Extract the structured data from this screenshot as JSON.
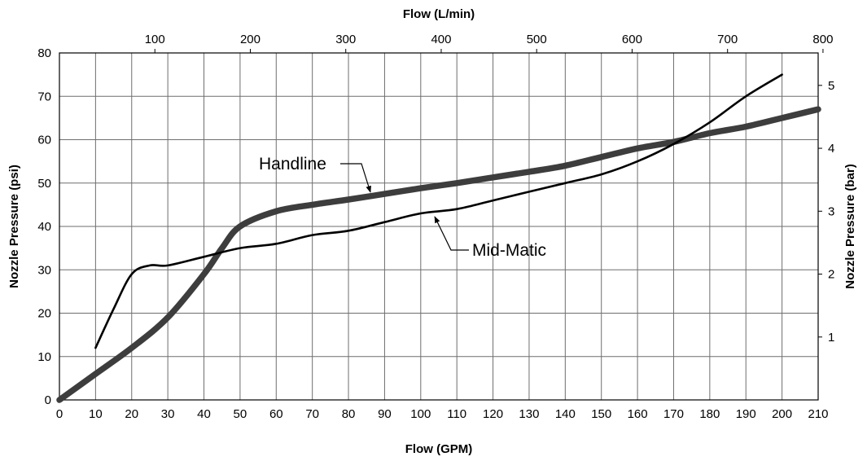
{
  "chart_data": {
    "type": "line",
    "x_label_bottom": "Flow (GPM)",
    "x_label_top": "Flow (L/min)",
    "y_label_left": "Nozzle Pressure (psi)",
    "y_label_right": "Nozzle Pressure (bar)",
    "xlim": [
      0,
      210
    ],
    "ylim": [
      0,
      80
    ],
    "x_ticks": [
      "0",
      "10",
      "20",
      "30",
      "40",
      "50",
      "60",
      "70",
      "80",
      "90",
      "100",
      "110",
      "120",
      "130",
      "140",
      "150",
      "160",
      "170",
      "180",
      "190",
      "200",
      "210"
    ],
    "y_ticks": [
      "0",
      "10",
      "20",
      "30",
      "40",
      "50",
      "60",
      "70",
      "80"
    ],
    "top_ticks": [
      {
        "value": 100,
        "label": "100"
      },
      {
        "value": 200,
        "label": "200"
      },
      {
        "value": 300,
        "label": "300"
      },
      {
        "value": 400,
        "label": "400"
      },
      {
        "value": 500,
        "label": "500"
      },
      {
        "value": 600,
        "label": "600"
      },
      {
        "value": 700,
        "label": "700"
      },
      {
        "value": 800,
        "label": "800"
      }
    ],
    "right_ticks": [
      {
        "value": 1,
        "label": "1"
      },
      {
        "value": 2,
        "label": "2"
      },
      {
        "value": 3,
        "label": "3"
      },
      {
        "value": 4,
        "label": "4"
      },
      {
        "value": 5,
        "label": "5"
      }
    ],
    "grid": true,
    "series": [
      {
        "name": "Handline",
        "line": "thick",
        "color": "#3d3d3d",
        "x": [
          0,
          10,
          20,
          30,
          40,
          45,
          50,
          60,
          70,
          80,
          90,
          100,
          110,
          120,
          130,
          140,
          150,
          160,
          170,
          180,
          190,
          200,
          210
        ],
        "y": [
          0,
          6,
          12,
          19,
          29,
          35,
          40,
          43.5,
          45,
          46.2,
          47.5,
          48.8,
          50,
          51.3,
          52.6,
          54,
          56,
          58,
          59.5,
          61.5,
          63,
          65,
          67
        ]
      },
      {
        "name": "Mid-Matic",
        "line": "thin",
        "color": "#000000",
        "x": [
          10,
          15,
          20,
          25,
          30,
          40,
          50,
          60,
          70,
          80,
          90,
          100,
          110,
          120,
          130,
          140,
          150,
          160,
          170,
          180,
          190,
          200
        ],
        "y": [
          12,
          21,
          29,
          31,
          31,
          33,
          35,
          36,
          38,
          39,
          41,
          43,
          44,
          46,
          48,
          50,
          52,
          55,
          59,
          64,
          70,
          75
        ]
      }
    ],
    "annotations": [
      {
        "text": "Handline",
        "series": "Handline"
      },
      {
        "text": "Mid-Matic",
        "series": "Mid-Matic"
      }
    ]
  }
}
